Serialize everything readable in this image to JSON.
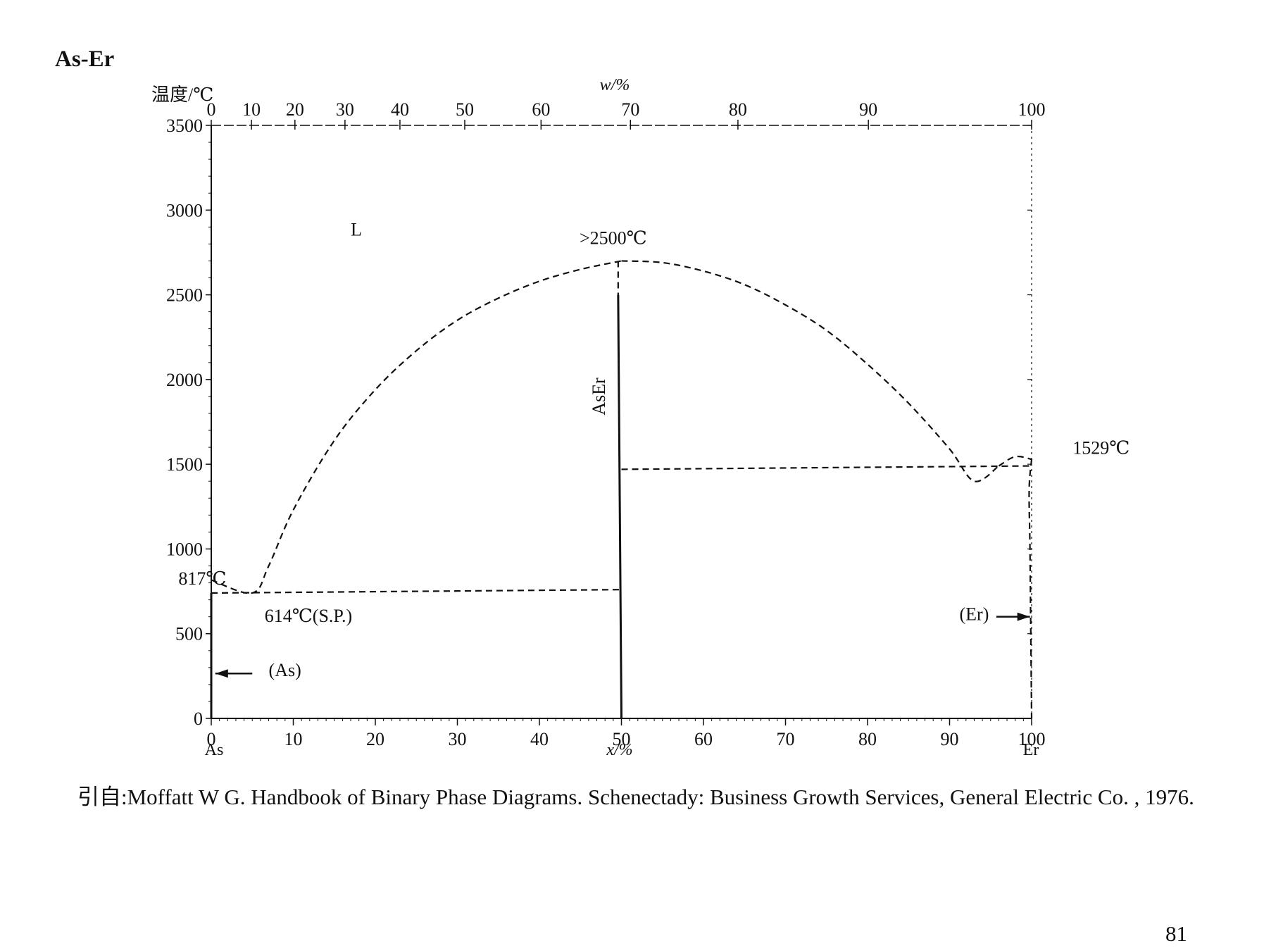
{
  "page": {
    "title": "As-Er",
    "caption": "引自:Moffatt W G. Handbook of Binary Phase Diagrams. Schenectady: Business Growth Services, General Electric Co. , 1976.",
    "page_number": "81"
  },
  "chart_data": {
    "type": "line",
    "title": "As-Er",
    "ylabel": "温度/℃",
    "xlabel": "x/%",
    "x2label": "w/%",
    "xlim": [
      0,
      100
    ],
    "ylim": [
      0,
      3500
    ],
    "yticks": [
      0,
      500,
      1000,
      1500,
      2000,
      2500,
      3000,
      3500
    ],
    "xticks": [
      0,
      10,
      20,
      30,
      40,
      50,
      60,
      70,
      80,
      90,
      100
    ],
    "x2ticks": [
      {
        "w": 0,
        "x": 0
      },
      {
        "w": 10,
        "x": 4.9
      },
      {
        "w": 20,
        "x": 10.2
      },
      {
        "w": 30,
        "x": 16.3
      },
      {
        "w": 40,
        "x": 23.0
      },
      {
        "w": 50,
        "x": 30.9
      },
      {
        "w": 60,
        "x": 40.2
      },
      {
        "w": 70,
        "x": 51.1
      },
      {
        "w": 80,
        "x": 64.2
      },
      {
        "w": 90,
        "x": 80.1
      },
      {
        "w": 100,
        "x": 100
      }
    ],
    "endpoint_labels": {
      "left": "As",
      "right": "Er"
    },
    "series": [
      {
        "style": "dashed",
        "points": [
          [
            0,
            817
          ],
          [
            5,
            740
          ],
          [
            7,
            900
          ],
          [
            10,
            1230
          ],
          [
            15,
            1640
          ],
          [
            20,
            1940
          ],
          [
            25,
            2170
          ],
          [
            30,
            2350
          ],
          [
            35,
            2480
          ],
          [
            40,
            2580
          ],
          [
            45,
            2650
          ],
          [
            50,
            2700
          ]
        ]
      },
      {
        "style": "dashed",
        "points": [
          [
            50,
            2700
          ],
          [
            55,
            2690
          ],
          [
            60,
            2640
          ],
          [
            65,
            2560
          ],
          [
            70,
            2440
          ],
          [
            75,
            2290
          ],
          [
            80,
            2090
          ],
          [
            85,
            1860
          ],
          [
            90,
            1590
          ],
          [
            93,
            1400
          ],
          [
            96,
            1490
          ]
        ]
      },
      {
        "style": "dashed",
        "points": [
          [
            96,
            1490
          ],
          [
            98,
            1545
          ],
          [
            100,
            1529
          ]
        ]
      },
      {
        "style": "dashed",
        "points": [
          [
            0,
            740
          ],
          [
            50,
            760
          ]
        ]
      },
      {
        "style": "dashed",
        "points": [
          [
            50,
            1470
          ],
          [
            100,
            1490
          ]
        ]
      },
      {
        "style": "dashed",
        "points": [
          [
            49.6,
            2700
          ],
          [
            49.6,
            2500
          ]
        ]
      },
      {
        "style": "dashed",
        "points": [
          [
            100,
            1529
          ],
          [
            99.7,
            1350
          ],
          [
            99.8,
            1000
          ],
          [
            99.9,
            500
          ],
          [
            100,
            0
          ]
        ]
      },
      {
        "style": "solid",
        "points": [
          [
            49.6,
            2500
          ],
          [
            50,
            0
          ]
        ]
      },
      {
        "style": "solid",
        "points": [
          [
            0,
            740
          ],
          [
            0,
            0
          ]
        ]
      }
    ],
    "annotations": [
      {
        "text": ">2500℃",
        "x": 49,
        "y": 2800
      },
      {
        "text": "AsEr",
        "x": 48,
        "y": 1900
      },
      {
        "text": "L",
        "x": 17,
        "y": 2850
      },
      {
        "text": "817℃",
        "x": -4,
        "y": 790
      },
      {
        "text": "614℃(S.P.)",
        "x": 6.5,
        "y": 570
      },
      {
        "text": "(As)",
        "x": 7,
        "y": 250
      },
      {
        "text": "1529℃",
        "x": 105,
        "y": 1560
      },
      {
        "text": "(Er)",
        "x": 93,
        "y": 580
      }
    ],
    "arrows": [
      {
        "from": [
          5,
          265
        ],
        "to": [
          0.5,
          265
        ]
      },
      {
        "from": [
          95.7,
          600
        ],
        "to": [
          99.8,
          600
        ]
      }
    ],
    "grid": false
  }
}
